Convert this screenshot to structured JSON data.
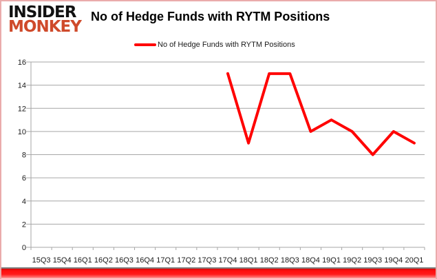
{
  "logo": {
    "line1": "INSIDER",
    "line2": "MONKEY"
  },
  "header": {
    "title": "No of Hedge Funds with RYTM Positions"
  },
  "legend": {
    "label": "No of Hedge Funds with RYTM Positions",
    "color": "#ff0000"
  },
  "colors": {
    "line": "#ff0000",
    "grid": "#a6a6a6",
    "axis_text": "#1a1a1a",
    "logo_accent": "#cf4a2b",
    "border": "#eaabab",
    "bottom_bar": "#ff0f0f"
  },
  "chart_data": {
    "type": "line",
    "title": "No of Hedge Funds with RYTM Positions",
    "categories": [
      "15Q3",
      "15Q4",
      "16Q1",
      "16Q2",
      "16Q3",
      "16Q4",
      "17Q1",
      "17Q2",
      "17Q3",
      "17Q4",
      "18Q1",
      "18Q2",
      "18Q3",
      "18Q4",
      "19Q1",
      "19Q2",
      "19Q3",
      "19Q4",
      "20Q1"
    ],
    "series": [
      {
        "name": "No of Hedge Funds with RYTM Positions",
        "color": "#ff0000",
        "values": [
          null,
          null,
          null,
          null,
          null,
          null,
          null,
          null,
          null,
          15,
          9,
          15,
          15,
          10,
          11,
          10,
          8,
          10,
          9
        ]
      }
    ],
    "xlabel": "",
    "ylabel": "",
    "ylim": [
      0,
      16
    ],
    "ytick_step": 2,
    "grid": true,
    "legend_position": "top-center"
  }
}
